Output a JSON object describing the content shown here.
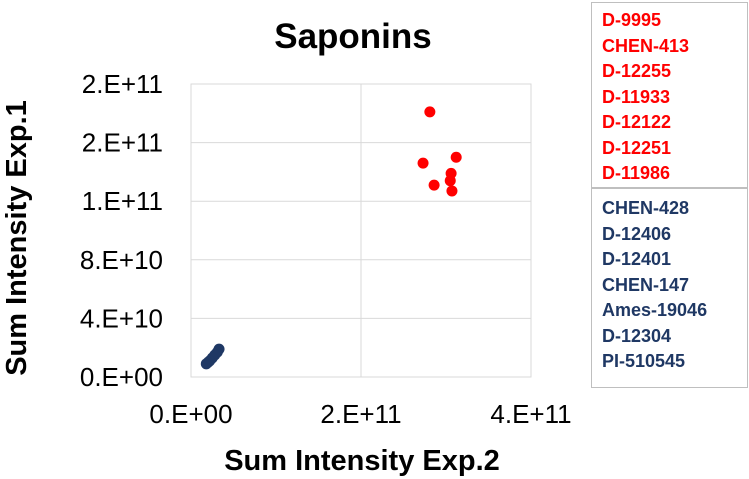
{
  "chart_data": {
    "type": "scatter",
    "title": "Saponins",
    "xlabel": "Sum Intensity Exp.2",
    "ylabel": "Sum Intensity Exp.1",
    "xlim": [
      0,
      400000000000
    ],
    "ylim": [
      0,
      200000000000
    ],
    "x_ticks": [
      {
        "value": 0,
        "label": "0.E+00"
      },
      {
        "value": 200000000000,
        "label": "2.E+11"
      },
      {
        "value": 400000000000,
        "label": "4.E+11"
      }
    ],
    "y_ticks": [
      {
        "value": 0,
        "label": "0.E+00"
      },
      {
        "value": 40000000000,
        "label": "4.E+10"
      },
      {
        "value": 80000000000,
        "label": "8.E+10"
      },
      {
        "value": 120000000000,
        "label": "1.E+11"
      },
      {
        "value": 160000000000,
        "label": "2.E+11"
      },
      {
        "value": 200000000000,
        "label": "2.E+11"
      }
    ],
    "grid": true,
    "legend_placement": "right",
    "series": [
      {
        "color": "#ff0000",
        "legend": [
          "D-9995",
          "CHEN-413",
          "D-12255",
          "D-11933",
          "D-12122",
          "D-12251",
          "D-11986"
        ],
        "points": [
          {
            "x": 281000000000,
            "y": 181000000000
          },
          {
            "x": 273000000000,
            "y": 146000000000
          },
          {
            "x": 312000000000,
            "y": 150000000000
          },
          {
            "x": 306000000000,
            "y": 139000000000
          },
          {
            "x": 305000000000,
            "y": 134000000000
          },
          {
            "x": 286000000000,
            "y": 131000000000
          },
          {
            "x": 307000000000,
            "y": 127000000000
          }
        ]
      },
      {
        "color": "#1f3864",
        "legend": [
          "CHEN-428",
          "D-12406",
          "D-12401",
          "CHEN-147",
          "Ames-19046",
          "D-12304",
          "PI-510545"
        ],
        "points": [
          {
            "x": 33000000000,
            "y": 19000000000
          },
          {
            "x": 31000000000,
            "y": 17000000000
          },
          {
            "x": 28000000000,
            "y": 15000000000
          },
          {
            "x": 25000000000,
            "y": 13000000000
          },
          {
            "x": 22000000000,
            "y": 11000000000
          },
          {
            "x": 20000000000,
            "y": 10000000000
          },
          {
            "x": 18000000000,
            "y": 9000000000
          }
        ]
      }
    ]
  }
}
